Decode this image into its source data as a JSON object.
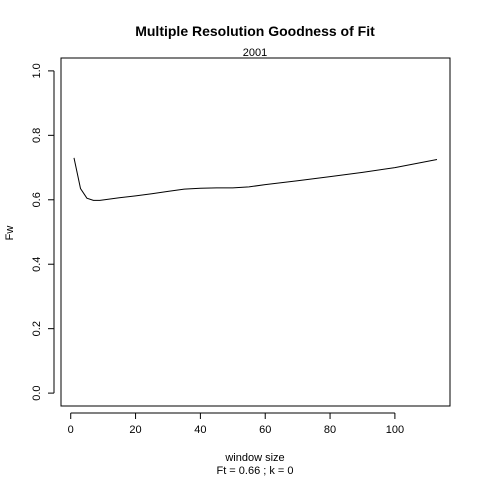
{
  "chart_data": {
    "type": "line",
    "title": "Multiple Resolution Goodness of Fit",
    "subtitle": "2001",
    "xlabel": "window size",
    "ylabel": "Fw",
    "footnote": "Ft = 0.66 ; k =  0",
    "xlim": [
      -3,
      117
    ],
    "ylim": [
      -0.04,
      1.04
    ],
    "x_ticks": [
      0,
      20,
      40,
      60,
      80,
      100
    ],
    "y_ticks": [
      0.0,
      0.2,
      0.4,
      0.6,
      0.8,
      1.0
    ],
    "x_tick_labels": [
      "0",
      "20",
      "40",
      "60",
      "80",
      "100"
    ],
    "y_tick_labels": [
      "0.0",
      "0.2",
      "0.4",
      "0.6",
      "0.8",
      "1.0"
    ],
    "grid": false,
    "series": [
      {
        "x": [
          1,
          3,
          5,
          7,
          9,
          11,
          15,
          20,
          25,
          30,
          35,
          40,
          45,
          50,
          55,
          60,
          70,
          80,
          90,
          100,
          113
        ],
        "y": [
          0.73,
          0.635,
          0.605,
          0.598,
          0.598,
          0.601,
          0.606,
          0.612,
          0.619,
          0.626,
          0.633,
          0.636,
          0.637,
          0.637,
          0.64,
          0.647,
          0.659,
          0.672,
          0.685,
          0.7,
          0.725
        ]
      }
    ]
  }
}
